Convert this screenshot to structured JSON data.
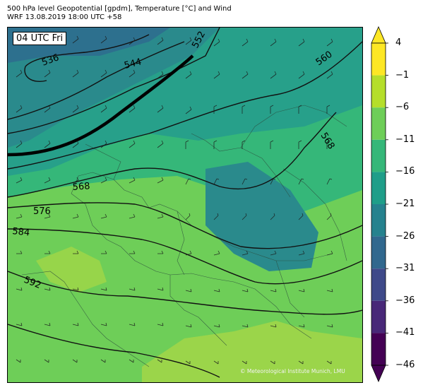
{
  "header": {
    "line1": "500 hPa level Geopotential [gpdm], Temperature [°C] and Wind",
    "line2": "WRF 13.08.2019 18:00 UTC +58"
  },
  "time_badge": "04 UTC Fri",
  "copyright": "© Meteorological Institute Munich, LMU",
  "contour_labels": [
    "536",
    "544",
    "552",
    "560",
    "568",
    "568",
    "576",
    "584",
    "592"
  ],
  "colorbar": {
    "ticks": [
      "4",
      "−1",
      "−6",
      "−11",
      "−16",
      "−21",
      "−26",
      "−31",
      "−36",
      "−41",
      "−46"
    ],
    "colors_top_to_bottom": [
      "#fde725",
      "#b5de2b",
      "#6ece58",
      "#35b779",
      "#1f9e89",
      "#26828e",
      "#31688e",
      "#3e4989",
      "#482878",
      "#440154"
    ]
  },
  "colors": {
    "warm_green": "#8fd14f",
    "mid_green": "#5ec962",
    "teal_green": "#3bb77a",
    "teal": "#22a784",
    "blue_teal": "#2a8a8c",
    "deep_blue": "#2d708e"
  }
}
